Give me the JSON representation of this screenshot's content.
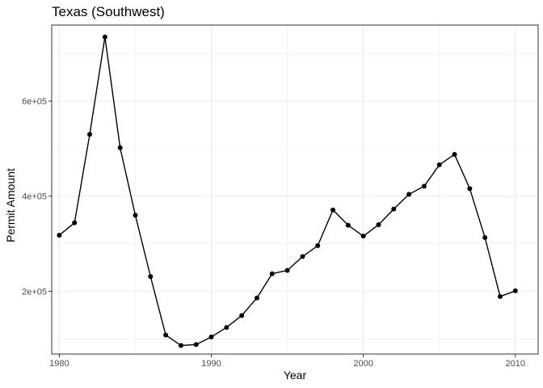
{
  "chart_data": {
    "type": "line",
    "title": "Texas (Southwest)",
    "xlabel": "Year",
    "ylabel": "Permit Amount",
    "x_ticks": [
      1980,
      1990,
      2000,
      2010
    ],
    "x_tick_labels": [
      "1980",
      "1990",
      "2000",
      "2010"
    ],
    "y_ticks": [
      200000,
      400000,
      600000
    ],
    "y_tick_labels": [
      "2e+05",
      "4e+05",
      "6e+05"
    ],
    "xlim": [
      1979.5,
      2011.5
    ],
    "ylim": [
      68000,
      760000
    ],
    "grid": true,
    "series": [
      {
        "points": true,
        "color": "#000000",
        "x": [
          1980,
          1981,
          1982,
          1983,
          1984,
          1985,
          1986,
          1987,
          1988,
          1989,
          1990,
          1991,
          1992,
          1993,
          1994,
          1995,
          1996,
          1997,
          1998,
          1999,
          2000,
          2001,
          2002,
          2003,
          2004,
          2005,
          2006,
          2007,
          2008,
          2009,
          2010
        ],
        "y": [
          318000,
          344000,
          530000,
          735000,
          502000,
          360000,
          231000,
          108000,
          86000,
          88000,
          104000,
          124000,
          149000,
          186000,
          237000,
          244000,
          273000,
          296000,
          371000,
          339000,
          316000,
          340000,
          373000,
          404000,
          421000,
          466000,
          488000,
          416000,
          313000,
          189000,
          201000
        ]
      }
    ]
  }
}
